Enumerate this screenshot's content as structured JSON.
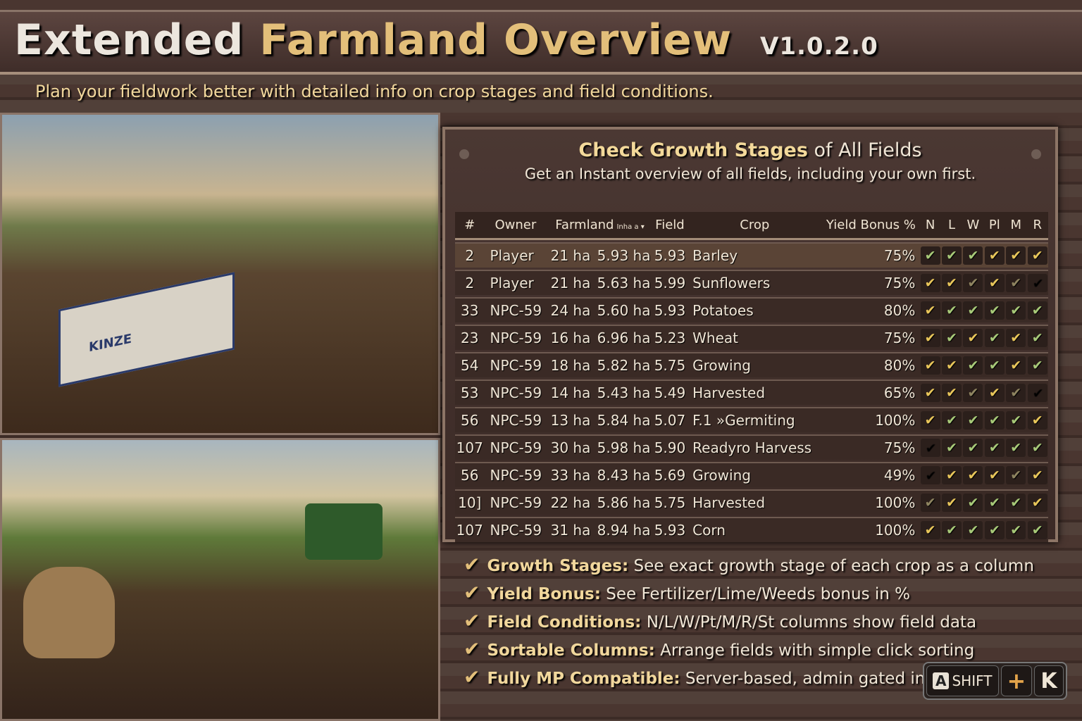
{
  "header": {
    "title_part1": "Extended",
    "title_part2": "Farmland Overview",
    "version": "V1.0.2.0",
    "subtitle": "Plan your fieldwork better with detailed info on crop stages and field conditions."
  },
  "panel": {
    "heading_bold": "Check Growth Stages",
    "heading_rest": "of All Fields",
    "description": "Get an Instant overview of all fields, including your own first."
  },
  "table": {
    "columns": [
      "#",
      "Owner",
      "Farmland",
      "Field",
      "Crop",
      "Yield Bonus %",
      "N",
      "L",
      "W",
      "Pl",
      "M",
      "R"
    ],
    "farmland_sub": "Inha a",
    "rows": [
      {
        "id": "2",
        "owner": "Player",
        "farmland": "21 ha",
        "area": "5.93 ha",
        "field": "5.93",
        "crop": "Barley",
        "yield": "75%",
        "checks": [
          "g",
          "g",
          "g",
          "y",
          "y",
          "y"
        ]
      },
      {
        "id": "2",
        "owner": "Player",
        "farmland": "21 ha",
        "area": "5.63 ha",
        "field": "5.99",
        "crop": "Sunflowers",
        "yield": "75%",
        "checks": [
          "y",
          "y",
          "d",
          "y",
          "d",
          "n"
        ]
      },
      {
        "id": "33",
        "owner": "NPC-59",
        "farmland": "24 ha",
        "area": "5.60 ha",
        "field": "5.93",
        "crop": "Potatoes",
        "yield": "80%",
        "checks": [
          "y",
          "g",
          "g",
          "g",
          "g",
          "g"
        ]
      },
      {
        "id": "23",
        "owner": "NPC-59",
        "farmland": "16 ha",
        "area": "6.96 ha",
        "field": "5.23",
        "crop": "Wheat",
        "yield": "75%",
        "checks": [
          "y",
          "g",
          "y",
          "g",
          "y",
          "g"
        ]
      },
      {
        "id": "54",
        "owner": "NPC-59",
        "farmland": "18 ha",
        "area": "5.82 ha",
        "field": "5.75",
        "crop": "Growing",
        "yield": "80%",
        "checks": [
          "y",
          "y",
          "g",
          "g",
          "y",
          "g"
        ]
      },
      {
        "id": "53",
        "owner": "NPC-59",
        "farmland": "14 ha",
        "area": "5.43 ha",
        "field": "5.49",
        "crop": "Harvested",
        "yield": "65%",
        "checks": [
          "y",
          "y",
          "d",
          "y",
          "d",
          "n"
        ]
      },
      {
        "id": "56",
        "owner": "NPC-59",
        "farmland": "13 ha",
        "area": "5.84 ha",
        "field": "5.07",
        "crop": "F.1 »Germiting",
        "yield": "100%",
        "checks": [
          "y",
          "g",
          "g",
          "g",
          "g",
          "y"
        ]
      },
      {
        "id": "107",
        "owner": "NPC-59",
        "farmland": "30 ha",
        "area": "5.98 ha",
        "field": "5.90",
        "crop": "Readyro Harvess",
        "yield": "75%",
        "checks": [
          "n",
          "g",
          "g",
          "g",
          "g",
          "g"
        ]
      },
      {
        "id": "56",
        "owner": "NPC-59",
        "farmland": "33 ha",
        "area": "8.43 ha",
        "field": "5.69",
        "crop": "Growing",
        "yield": "49%",
        "checks": [
          "n",
          "y",
          "y",
          "y",
          "d",
          "y"
        ]
      },
      {
        "id": "10]",
        "owner": "NPC-59",
        "farmland": "22 ha",
        "area": "5.86 ha",
        "field": "5.75",
        "crop": "Harvested",
        "yield": "100%",
        "checks": [
          "d",
          "y",
          "g",
          "g",
          "g",
          "y"
        ]
      },
      {
        "id": "107",
        "owner": "NPC-59",
        "farmland": "31 ha",
        "area": "8.94 ha",
        "field": "5.93",
        "crop": "Corn",
        "yield": "100%",
        "checks": [
          "y",
          "g",
          "g",
          "g",
          "g",
          "g"
        ]
      }
    ]
  },
  "features": [
    {
      "title": "Growth Stages:",
      "text": "See exact growth stage of each crop as a column"
    },
    {
      "title": "Yield Bonus:",
      "text": "See Fertilizer/Lime/Weeds bonus in %"
    },
    {
      "title": "Field Conditions:",
      "text": "N/L/W/Pt/M/R/St columns show field data"
    },
    {
      "title": "Sortable Columns:",
      "text": "Arrange fields with simple click sorting"
    },
    {
      "title": "Fully MP Compatible:",
      "text": "Server-based, admin gated in"
    }
  ],
  "hotkey": {
    "key1_icon": "A",
    "key1": "SHIFT",
    "plus": "+",
    "key2": "K"
  },
  "images": {
    "trailer_brand": "KINZE"
  },
  "colors": {
    "accent_gold": "#e3bf7a",
    "check_yellow": "#e8c65a",
    "check_green": "#a7c978"
  }
}
